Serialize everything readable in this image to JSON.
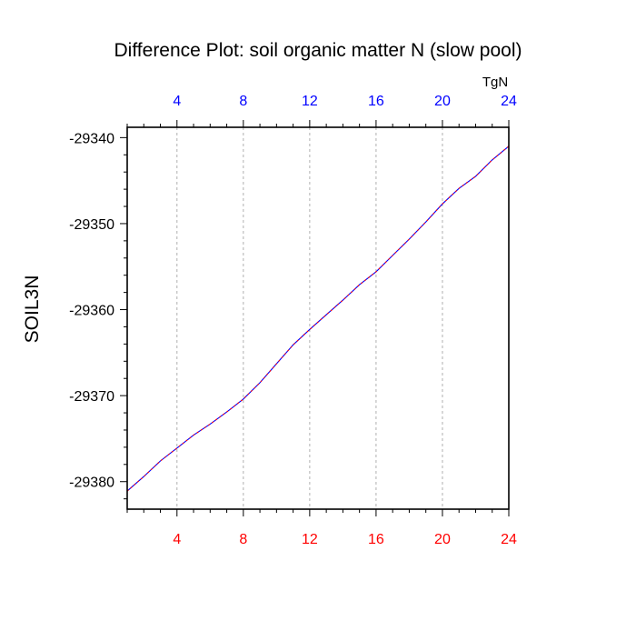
{
  "chart_data": {
    "type": "line",
    "title": "Difference Plot: soil organic matter N (slow pool)",
    "ylabel": "SOIL3N",
    "units": "TgN",
    "xlim": [
      1,
      24
    ],
    "ylim": [
      -29383.2,
      -29338.8
    ],
    "x_ticks": [
      4,
      8,
      12,
      16,
      20,
      24
    ],
    "y_ticks": [
      -29340,
      -29350,
      -29360,
      -29370,
      -29380
    ],
    "x_grid": true,
    "colors": {
      "top_tick_labels": "#0000ff",
      "bottom_tick_labels": "#ff0000",
      "line_a": "#0000ff",
      "line_b": "#ff0000"
    },
    "series": [
      {
        "x": [
          1,
          2,
          3,
          4,
          5,
          6,
          7,
          8,
          9,
          10,
          11,
          12,
          13,
          14,
          15,
          16,
          17,
          18,
          19,
          20,
          21,
          22,
          23,
          24
        ],
        "values": [
          -29381.1,
          -29379.4,
          -29377.6,
          -29376.1,
          -29374.6,
          -29373.3,
          -29371.9,
          -29370.4,
          -29368.5,
          -29366.3,
          -29364.1,
          -29362.3,
          -29360.6,
          -29358.9,
          -29357.1,
          -29355.6,
          -29353.7,
          -29351.8,
          -29349.8,
          -29347.7,
          -29345.9,
          -29344.5,
          -29342.6,
          -29341.0
        ]
      }
    ]
  }
}
